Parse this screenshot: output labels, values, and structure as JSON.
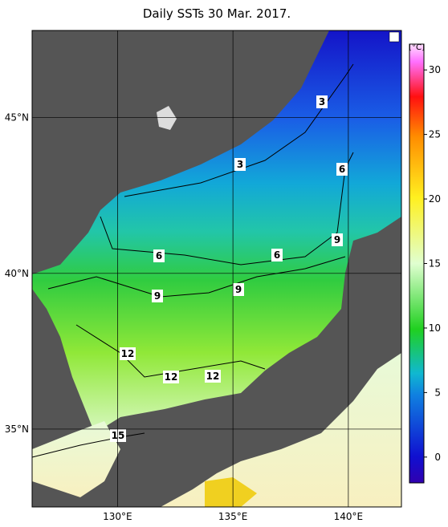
{
  "title": "Daily SSTs 30 Mar. 2017.",
  "map": {
    "xlim": [
      126.3,
      142.3
    ],
    "ylim": [
      32.5,
      47.8
    ],
    "xticks": [
      {
        "value": 130,
        "label": "130°E"
      },
      {
        "value": 135,
        "label": "135°E"
      },
      {
        "value": 140,
        "label": "140°E"
      }
    ],
    "yticks": [
      {
        "value": 35,
        "label": "35°N"
      },
      {
        "value": 40,
        "label": "40°N"
      },
      {
        "value": 45,
        "label": "45°N"
      }
    ]
  },
  "colorbar": {
    "label": "[°C]",
    "lim": [
      -2,
      32
    ],
    "ticks": [
      0,
      5,
      10,
      15,
      20,
      25,
      30
    ]
  },
  "contour_labels": [
    3,
    3,
    6,
    6,
    6,
    9,
    9,
    9,
    12,
    12,
    12,
    15
  ]
}
